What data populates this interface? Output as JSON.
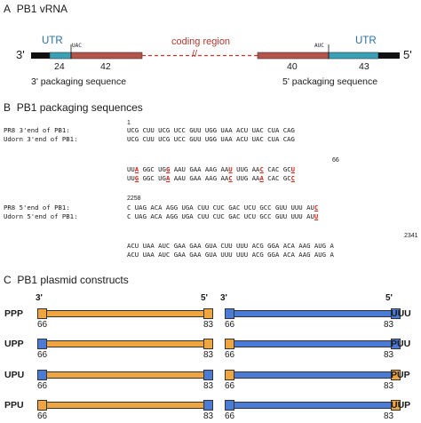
{
  "panelA": {
    "letter": "A",
    "title": "PB1 vRNA",
    "left_end": "3'",
    "right_end": "5'",
    "utr_left": "UTR",
    "utr_right": "UTR",
    "uac": "UAC",
    "auc": "AUC",
    "coding_region": "coding region",
    "break_mark": "//",
    "n24": "24",
    "n42": "42",
    "n40": "40",
    "n43": "43",
    "pkg3": "3' packaging sequence",
    "pkg5": "5' packaging sequence",
    "colors": {
      "utr": "#3aa0b5",
      "coding": "#b5544a",
      "end": "#111111"
    }
  },
  "panelB": {
    "letter": "B",
    "title": "PB1 packaging sequences",
    "n1": "1",
    "n66": "66",
    "n2258": "2258",
    "n2341": "2341",
    "pr8_3": "PR8  3'end of PB1:",
    "udorn_3": "Udorn 3'end of PB1:",
    "seq3a": "UCG CUU UCG UCC GUU UGG UAA ACU UAC CUA CAG",
    "seq3b": "UCG CUU UCG UCC GUU UGG UAA ACU UAC CUA CAG",
    "pr8_5": "PR8  5'end of PB1:",
    "udorn_5": "Udorn 5'end of PB1:",
    "seq5a": "C UAG ACA AGG UGA CUU CUC GAC UCU GCC GUU UUU AUC",
    "seq5b": "C UAG ACA AGG UGA CUU CUC GAC UCU GCC GUU UUU AUC",
    "seq5c": "ACU UAA AUC GAA GAA GUA CUU UUU ACG GGA ACA AAG AUG A",
    "seq5d": "ACU UAA AUC GAA GAA GUA UUU UUU ACG GGA ACA AAG AUG A"
  },
  "panelC": {
    "letter": "C",
    "title": "PB1 plasmid constructs",
    "end3": "3'",
    "end5": "5'",
    "n66": "66",
    "n83": "83",
    "left": [
      "PPP",
      "UPP",
      "UPU",
      "PPU"
    ],
    "right": [
      "UUU",
      "PUU",
      "PUP",
      "UUP"
    ],
    "colors": {
      "orange": "#f0a640",
      "blue": "#4a7bd6"
    }
  }
}
